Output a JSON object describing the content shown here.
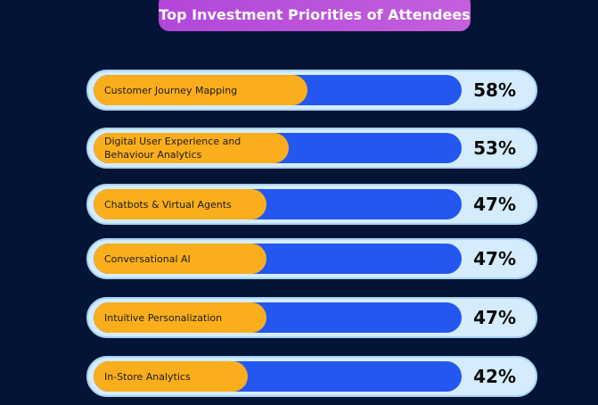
{
  "chart_data": {
    "type": "bar",
    "orientation": "horizontal",
    "title": "Top Investment Priorities of Attendees",
    "categories": [
      "Customer Journey Mapping",
      "Digital User Experience and Behaviour Analytics",
      "Chatbots & Virtual Agents",
      "Conversational AI",
      "Intuitive Personalization",
      "In-Store Analytics"
    ],
    "values": [
      58,
      53,
      47,
      47,
      47,
      42
    ],
    "value_labels": [
      "58%",
      "53%",
      "47%",
      "47%",
      "47%",
      "42%"
    ],
    "color": "#fbae1c",
    "xlim": [
      0,
      100
    ]
  }
}
